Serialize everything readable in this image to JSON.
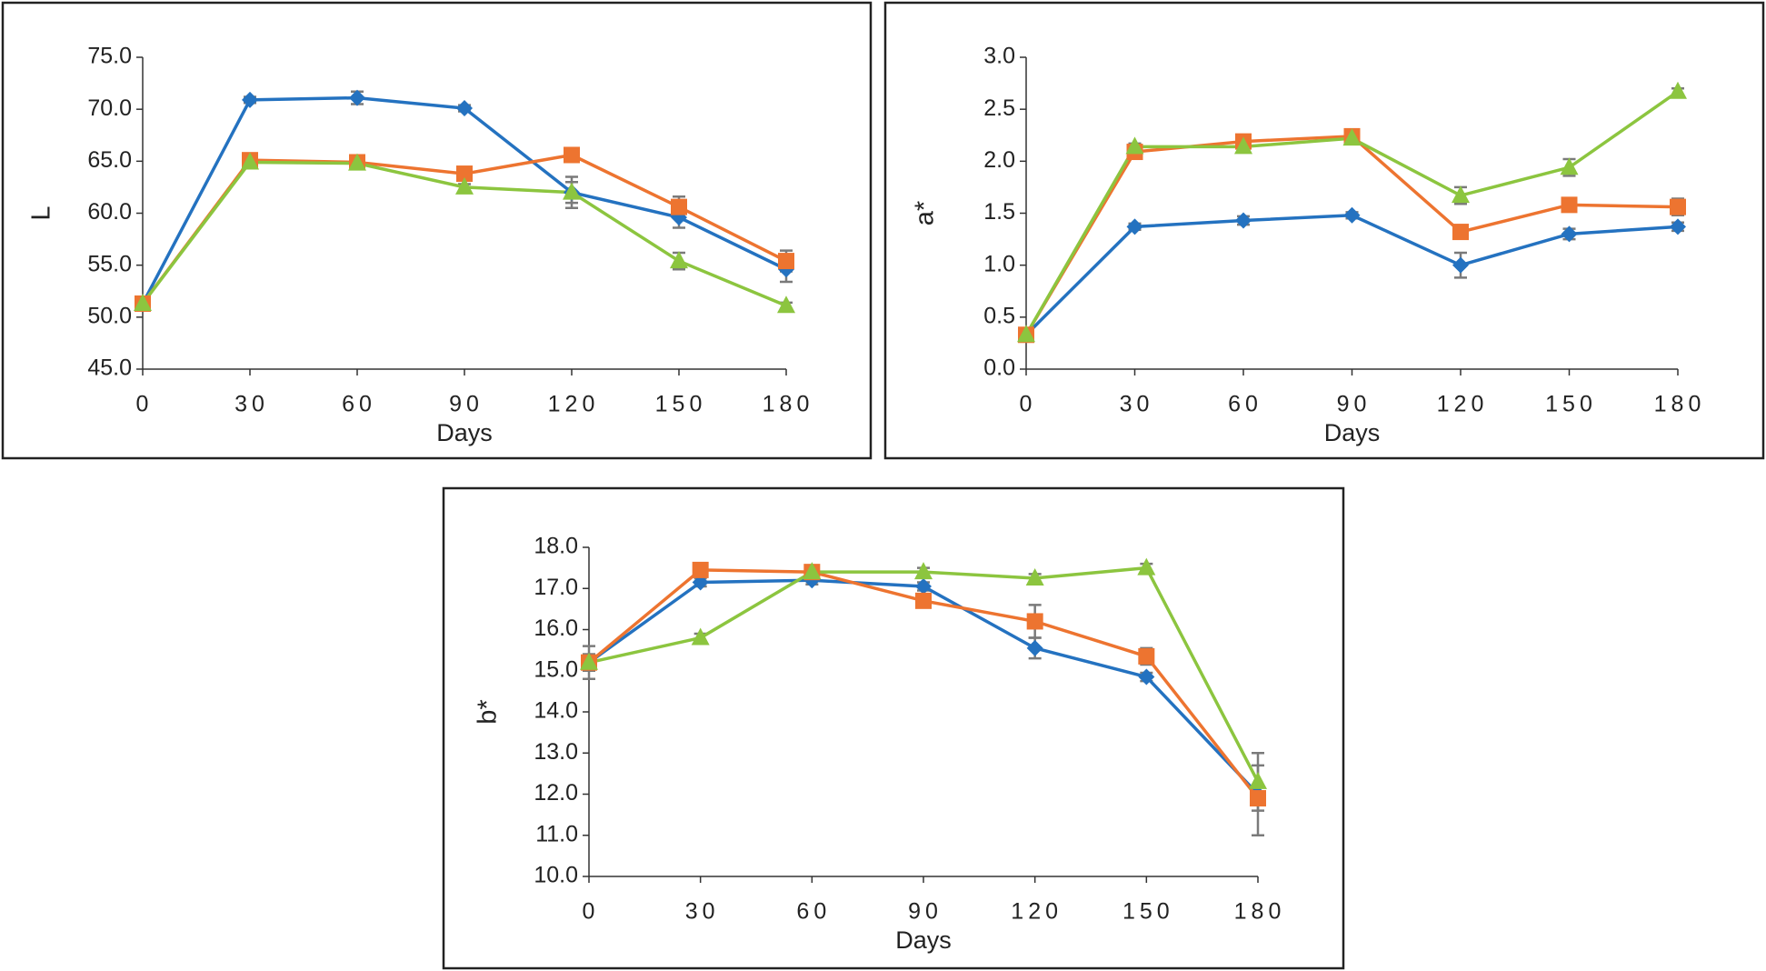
{
  "chart_data": [
    {
      "type": "line",
      "xlabel": "Days",
      "ylabel": "L",
      "x": [
        0,
        30,
        60,
        90,
        120,
        150,
        180
      ],
      "xlim": [
        0,
        180
      ],
      "xticks": [
        0,
        30,
        60,
        90,
        120,
        150,
        180
      ],
      "ylim": [
        45,
        75
      ],
      "yticks": [
        {
          "value": 45,
          "label": "45.0"
        },
        {
          "value": 50,
          "label": "50.0"
        },
        {
          "value": 55,
          "label": "55.0"
        },
        {
          "value": 60,
          "label": "60.0"
        },
        {
          "value": 65,
          "label": "65.0"
        },
        {
          "value": 70,
          "label": "70.0"
        },
        {
          "value": 75,
          "label": "75.0"
        }
      ],
      "series": [
        {
          "color": "#2472c0",
          "marker": "diamond",
          "values": [
            51.3,
            70.9,
            71.1,
            70.1,
            62.0,
            59.6,
            54.6
          ],
          "errors": [
            0.3,
            0.3,
            0.6,
            0.3,
            1.5,
            1.0,
            1.2
          ]
        },
        {
          "color": "#ed7430",
          "marker": "square",
          "values": [
            51.3,
            65.1,
            64.9,
            63.8,
            65.6,
            60.6,
            55.4
          ],
          "errors": [
            0.3,
            0.3,
            0.3,
            0.5,
            0.5,
            1.0,
            1.0
          ]
        },
        {
          "color": "#8cc53f",
          "marker": "triangle",
          "values": [
            51.3,
            64.9,
            64.8,
            62.5,
            62.0,
            55.4,
            51.1
          ],
          "errors": [
            0.3,
            0.3,
            0.3,
            0.3,
            1.0,
            0.8,
            0.3
          ]
        }
      ]
    },
    {
      "type": "line",
      "xlabel": "Days",
      "ylabel": "a*",
      "x": [
        0,
        30,
        60,
        90,
        120,
        150,
        180
      ],
      "xlim": [
        0,
        180
      ],
      "xticks": [
        0,
        30,
        60,
        90,
        120,
        150,
        180
      ],
      "ylim": [
        0,
        3
      ],
      "yticks": [
        {
          "value": 0,
          "label": "0.0"
        },
        0.5,
        {
          "value": 1,
          "label": "1.0"
        },
        1.5,
        {
          "value": 2,
          "label": "2.0"
        },
        2.5,
        {
          "value": 3,
          "label": "3.0"
        }
      ],
      "series": [
        {
          "color": "#2472c0",
          "marker": "diamond",
          "values": [
            0.33,
            1.37,
            1.43,
            1.48,
            1.0,
            1.3,
            1.37
          ],
          "errors": [
            0.02,
            0.03,
            0.04,
            0.03,
            0.12,
            0.05,
            0.04
          ]
        },
        {
          "color": "#ed7430",
          "marker": "square",
          "values": [
            0.33,
            2.09,
            2.19,
            2.24,
            1.32,
            1.58,
            1.56
          ],
          "errors": [
            0.03,
            0.04,
            0.04,
            0.03,
            0.05,
            0.04,
            0.08
          ]
        },
        {
          "color": "#8cc53f",
          "marker": "triangle",
          "values": [
            0.33,
            2.14,
            2.14,
            2.22,
            1.67,
            1.94,
            2.67
          ],
          "errors": [
            0.02,
            0.03,
            0.03,
            0.03,
            0.08,
            0.08,
            0.03
          ]
        }
      ]
    },
    {
      "type": "line",
      "xlabel": "Days",
      "ylabel": "b*",
      "x": [
        0,
        30,
        60,
        90,
        120,
        150,
        180
      ],
      "xlim": [
        0,
        180
      ],
      "xticks": [
        0,
        30,
        60,
        90,
        120,
        150,
        180
      ],
      "ylim": [
        10,
        18
      ],
      "yticks": [
        {
          "value": 10,
          "label": "10.0"
        },
        {
          "value": 11,
          "label": "11.0"
        },
        {
          "value": 12,
          "label": "12.0"
        },
        {
          "value": 13,
          "label": "13.0"
        },
        {
          "value": 14,
          "label": "14.0"
        },
        {
          "value": 15,
          "label": "15.0"
        },
        {
          "value": 16,
          "label": "16.0"
        },
        {
          "value": 17,
          "label": "17.0"
        },
        {
          "value": 18,
          "label": "18.0"
        }
      ],
      "series": [
        {
          "color": "#2472c0",
          "marker": "diamond",
          "values": [
            15.2,
            17.15,
            17.2,
            17.05,
            15.55,
            14.85,
            12.0
          ],
          "errors": [
            0.2,
            0.1,
            0.1,
            0.1,
            0.25,
            0.1,
            1.0
          ]
        },
        {
          "color": "#ed7430",
          "marker": "square",
          "values": [
            15.2,
            17.45,
            17.4,
            16.7,
            16.2,
            15.35,
            11.9
          ],
          "errors": [
            0.4,
            0.1,
            0.1,
            0.1,
            0.4,
            0.2,
            0.3
          ]
        },
        {
          "color": "#8cc53f",
          "marker": "triangle",
          "values": [
            15.2,
            15.8,
            17.4,
            17.4,
            17.25,
            17.5,
            12.3
          ],
          "errors": [
            0.2,
            0.1,
            0.1,
            0.1,
            0.1,
            0.1,
            0.4
          ]
        }
      ]
    }
  ]
}
